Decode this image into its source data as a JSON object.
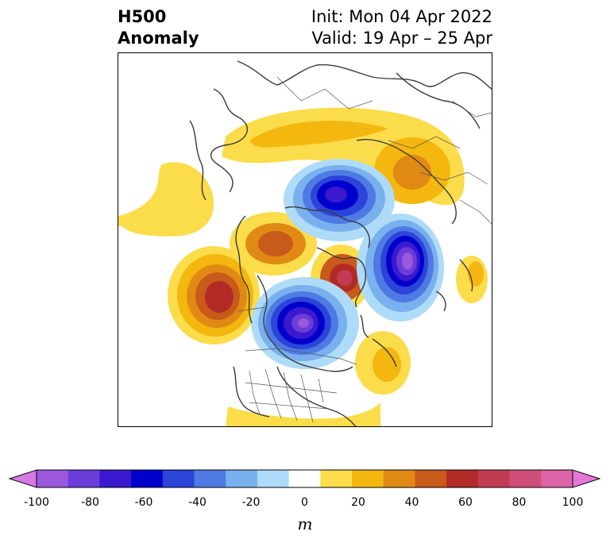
{
  "title": {
    "left_line1": "H500",
    "left_line2": "Anomaly",
    "right_line1": "Init: Mon 04 Apr 2022",
    "right_line2": "Valid: 19 Apr – 25 Apr"
  },
  "colorbar": {
    "ticks": [
      "-100",
      "-80",
      "-60",
      "-40",
      "-20",
      "0",
      "20",
      "40",
      "60",
      "80",
      "100"
    ],
    "colors": [
      "#d67ae6",
      "#9b58dd",
      "#6a3cd8",
      "#3a19cf",
      "#0000cd",
      "#2a45d8",
      "#4f7ae3",
      "#79b0ee",
      "#aedbf8",
      "#ffffff",
      "#fbdc4a",
      "#f3b70f",
      "#e08a15",
      "#c85a1a",
      "#b22a26",
      "#c13c52",
      "#cf4f7a",
      "#db63a8",
      "#e677da"
    ],
    "units": "m"
  },
  "map": {
    "projection": "north-polar-stereographic",
    "features": [
      "coastlines",
      "country-borders",
      "us-state-borders"
    ]
  }
}
